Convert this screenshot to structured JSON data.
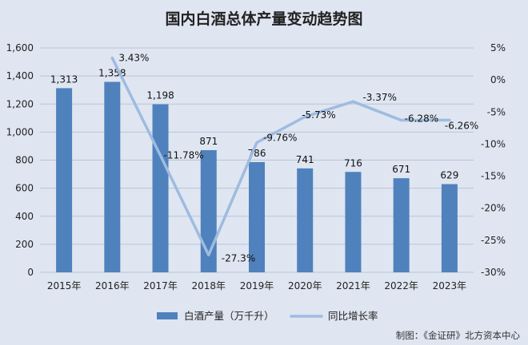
{
  "chart_data": {
    "type": "bar",
    "title": "国内白酒总体产量变动趋势图",
    "categories": [
      "2015年",
      "2016年",
      "2017年",
      "2018年",
      "2019年",
      "2020年",
      "2021年",
      "2022年",
      "2023年"
    ],
    "series": [
      {
        "name": "白酒产量（万千升）",
        "type": "bar",
        "axis": "left",
        "color": "#4f81bd",
        "values": [
          1313,
          1358,
          1198,
          871,
          786,
          741,
          716,
          671,
          629
        ],
        "labels": [
          "1,313",
          "1,358",
          "1,198",
          "871",
          "786",
          "741",
          "716",
          "671",
          "629"
        ]
      },
      {
        "name": "同比增长率",
        "type": "line",
        "axis": "right",
        "color": "#9fbbe0",
        "values": [
          null,
          3.43,
          -11.78,
          -27.3,
          -9.76,
          -5.73,
          -3.37,
          -6.28,
          -6.26
        ],
        "labels": [
          "",
          "3.43%",
          "-11.78%",
          "-27.3%",
          "-9.76%",
          "-5.73%",
          "-3.37%",
          "-6.28%",
          "-6.26%"
        ]
      }
    ],
    "y_left": {
      "min": 0,
      "max": 1600,
      "ticks": [
        0,
        200,
        400,
        600,
        800,
        1000,
        1200,
        1400,
        1600
      ],
      "tick_labels": [
        "0",
        "200",
        "400",
        "600",
        "800",
        "1,000",
        "1,200",
        "1,400",
        "1,600"
      ]
    },
    "y_right": {
      "min": -30,
      "max": 5,
      "ticks": [
        5,
        0,
        -5,
        -10,
        -15,
        -20,
        -25,
        -30
      ],
      "tick_labels": [
        "5%",
        "0%",
        "-5%",
        "-10%",
        "-15%",
        "-20%",
        "-25%",
        "-30%"
      ]
    },
    "grid": true,
    "legend_position": "bottom",
    "source": "制图：《金证研》北方资本中心"
  }
}
